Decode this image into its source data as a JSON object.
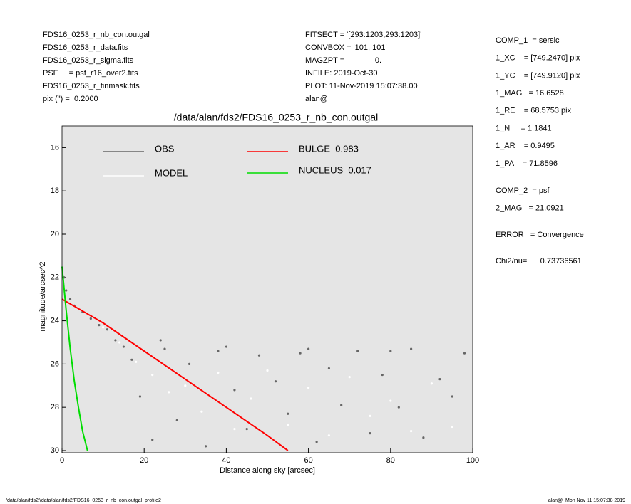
{
  "header": {
    "left": [
      "FDS16_0253_r_nb_con.outgal",
      "FDS16_0253_r_data.fits",
      "FDS16_0253_r_sigma.fits",
      "PSF     = psf_r16_over2.fits",
      "FDS16_0253_r_finmask.fits",
      "pix (\") =  0.2000"
    ],
    "middle": [
      "FITSECT = '[293:1203,293:1203]'",
      "CONVBOX = '101, 101'",
      "MAGZPT =              0.",
      "INFILE: 2019-Oct-30",
      "PLOT: 11-Nov-2019 15:07:38.00",
      "alan@"
    ],
    "right": [
      [
        "COMP_1  = sersic",
        "1_XC    = [749.2470] pix",
        "1_YC    = [749.9120] pix",
        "1_MAG   = 16.6528",
        "1_RE    = 68.5753 pix",
        "1_N     = 1.1841",
        "1_AR    = 0.9495",
        "1_PA    = 71.8596"
      ],
      [
        "COMP_2  = psf",
        "2_MAG   = 21.0921"
      ],
      [
        "ERROR   = Convergence"
      ],
      [
        "Chi2/nu=      0.73736561"
      ]
    ]
  },
  "footer": {
    "left": "/data/alan/fds2//data/alan/fds2/FDS16_0253_r_nb_con.outgal_profile2",
    "right": "alan@  Mon Nov 11 15:07:38 2019"
  },
  "chart_data": {
    "type": "scatter",
    "title": "/data/alan/fds2/FDS16_0253_r_nb_con.outgal",
    "xlabel": "Distance along sky [arcsec]",
    "ylabel": "magnitude/arcsec^2",
    "xlim": [
      0,
      100
    ],
    "ylim": [
      30.1,
      15
    ],
    "xticks": [
      0,
      20,
      40,
      60,
      80,
      100
    ],
    "yticks": [
      16,
      18,
      20,
      22,
      24,
      26,
      28,
      30
    ],
    "background": "#e5e5e5",
    "series": [
      {
        "name": "OBS",
        "kind": "points",
        "color": "#666666",
        "x": [
          0.5,
          1,
          2,
          3,
          5,
          7,
          9,
          11,
          13,
          15,
          17,
          19,
          22,
          25,
          28,
          31,
          35,
          38,
          42,
          45,
          48,
          52,
          55,
          58,
          62,
          65,
          68,
          72,
          75,
          78,
          82,
          85,
          88,
          92,
          95,
          98,
          24,
          40,
          60,
          80
        ],
        "values": [
          22.0,
          22.6,
          23.0,
          23.3,
          23.6,
          23.9,
          24.2,
          24.4,
          24.9,
          25.2,
          25.8,
          27.5,
          29.5,
          25.3,
          28.6,
          26.0,
          29.8,
          25.4,
          27.2,
          29.0,
          25.6,
          26.8,
          28.3,
          25.5,
          29.6,
          26.2,
          27.9,
          25.4,
          29.2,
          26.5,
          28.0,
          25.3,
          29.4,
          26.7,
          27.5,
          25.5,
          24.9,
          25.2,
          25.3,
          25.4
        ]
      },
      {
        "name": "MODEL",
        "kind": "points",
        "color": "#ffffff",
        "x": [
          10,
          14,
          18,
          22,
          26,
          30,
          34,
          38,
          42,
          46,
          50,
          55,
          60,
          65,
          70,
          75,
          80,
          85,
          90,
          95
        ],
        "values": [
          24.3,
          25.0,
          25.9,
          26.5,
          27.3,
          27.0,
          28.2,
          26.4,
          29.0,
          27.6,
          26.3,
          28.8,
          27.1,
          29.3,
          26.6,
          28.4,
          27.7,
          29.1,
          26.9,
          28.9
        ]
      },
      {
        "name": "BULGE  0.983",
        "kind": "line",
        "color": "#ff0000",
        "x": [
          0,
          10,
          20,
          30,
          40,
          50,
          55
        ],
        "values": [
          23.0,
          24.1,
          25.4,
          26.7,
          28.0,
          29.3,
          30.0
        ]
      },
      {
        "name": "NUCLEUS  0.017",
        "kind": "line",
        "color": "#00dd00",
        "x": [
          0,
          1,
          2,
          3,
          4,
          5,
          6.2
        ],
        "values": [
          21.5,
          23.5,
          25.3,
          26.8,
          28.0,
          29.1,
          30.0
        ]
      }
    ]
  }
}
